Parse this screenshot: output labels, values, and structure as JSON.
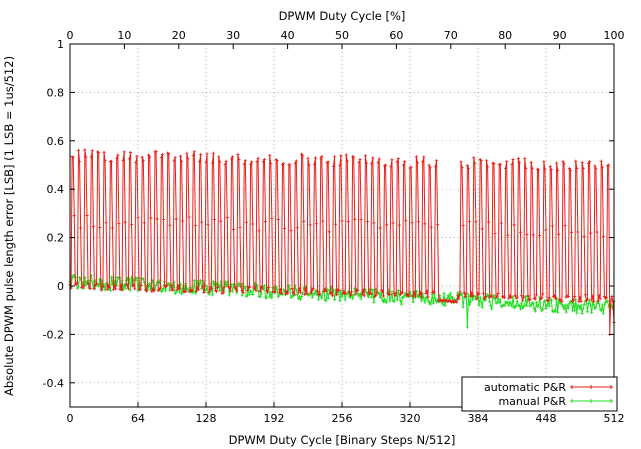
{
  "chart_data": {
    "type": "line",
    "title": "",
    "xlabel": "DPWM Duty Cycle [Binary Steps N/512]",
    "x2label": "DPWM Duty Cycle [%]",
    "ylabel": "Absolute DPWM pulse length error [LSB] (1 LSB = 1us/512)",
    "xlim": [
      0,
      512
    ],
    "x2lim": [
      0,
      100
    ],
    "ylim": [
      -0.5,
      1.0
    ],
    "xticks": [
      "0",
      "64",
      "128",
      "192",
      "256",
      "320",
      "384",
      "448",
      "512"
    ],
    "x2ticks": [
      "0",
      "10",
      "20",
      "30",
      "40",
      "50",
      "60",
      "70",
      "80",
      "90",
      "100"
    ],
    "yticks": [
      "-0.4",
      "-0.2",
      "0",
      "0.2",
      "0.4",
      "0.6",
      "0.8",
      "1"
    ],
    "grid": true,
    "legend_position": "bottom-right",
    "series": [
      {
        "name": "automatic P&R",
        "color": "#e8201a",
        "marker": "plus",
        "pattern": "sawtooth, period ~6 steps, 0 to ~0.55 LSB, midpoints ~0.2-0.3; gap near 345-365; final dip to -0.2",
        "sample_points": [
          [
            0,
            0.0
          ],
          [
            2,
            0.6
          ],
          [
            4,
            0.3
          ],
          [
            6,
            0.02
          ],
          [
            8,
            0.6
          ],
          [
            10,
            0.3
          ],
          [
            12,
            0.01
          ],
          [
            14,
            0.57
          ],
          [
            16,
            0.28
          ],
          [
            64,
            0.02
          ],
          [
            66,
            0.55
          ],
          [
            68,
            0.3
          ],
          [
            128,
            0.01
          ],
          [
            130,
            0.56
          ],
          [
            132,
            0.28
          ],
          [
            192,
            0.01
          ],
          [
            194,
            0.54
          ],
          [
            196,
            0.27
          ],
          [
            256,
            -0.01
          ],
          [
            258,
            0.55
          ],
          [
            260,
            0.26
          ],
          [
            320,
            0.0
          ],
          [
            322,
            0.54
          ],
          [
            324,
            0.25
          ],
          [
            345,
            0.01
          ],
          [
            346,
            0.55
          ],
          [
            348,
            0.0
          ],
          [
            365,
            0.01
          ],
          [
            366,
            0.57
          ],
          [
            384,
            -0.03
          ],
          [
            386,
            0.52
          ],
          [
            388,
            0.24
          ],
          [
            448,
            -0.05
          ],
          [
            450,
            0.5
          ],
          [
            452,
            0.22
          ],
          [
            500,
            -0.08
          ],
          [
            502,
            0.52
          ],
          [
            504,
            0.24
          ],
          [
            508,
            -0.2
          ],
          [
            510,
            0.4
          ],
          [
            512,
            -0.15
          ]
        ]
      },
      {
        "name": "manual P&R",
        "color": "#22dd22",
        "marker": "cross",
        "pattern": "noise around 0 drifting from ~0.0 to ~-0.1",
        "sample_points": [
          [
            0,
            0.02
          ],
          [
            64,
            -0.01
          ],
          [
            128,
            -0.02
          ],
          [
            192,
            -0.03
          ],
          [
            256,
            -0.05
          ],
          [
            320,
            -0.06
          ],
          [
            360,
            -0.07
          ],
          [
            374,
            -0.17
          ],
          [
            384,
            -0.08
          ],
          [
            448,
            -0.09
          ],
          [
            512,
            -0.1
          ]
        ]
      }
    ]
  }
}
